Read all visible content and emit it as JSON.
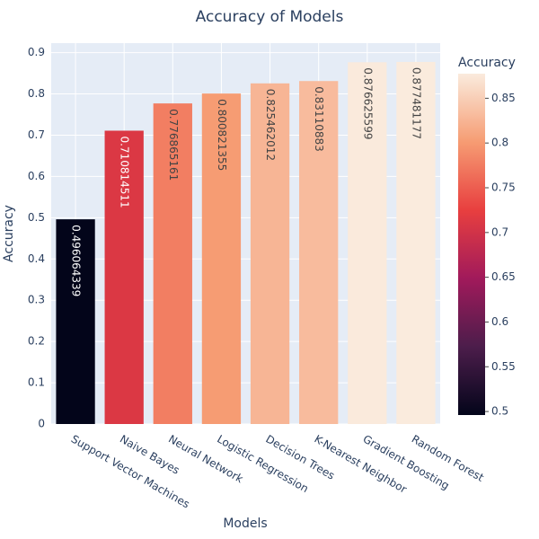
{
  "chart_data": {
    "type": "bar",
    "title": "Accuracy of Models",
    "x_label": "Models",
    "y_label": "Accuracy",
    "categories": [
      "Support Vector Machines",
      "Naive Bayes",
      "Neural Network",
      "Logistic Regression",
      "Decision Trees",
      "K-Nearest Neighbor",
      "Gradient Boosting",
      "Random Forest"
    ],
    "values": [
      0.496064339,
      0.710814511,
      0.776865161,
      0.800821355,
      0.825462012,
      0.83110883,
      0.876625599,
      0.877481177
    ],
    "ylim": [
      0,
      0.923
    ],
    "yticks": [
      0,
      0.1,
      0.2,
      0.3,
      0.4,
      0.5,
      0.6,
      0.7,
      0.8,
      0.9
    ],
    "grid": true,
    "colorscale": [
      "#03051a",
      "#4c1d4b",
      "#a11a5b",
      "#e83f3f",
      "#f69c73",
      "#faebdd"
    ],
    "colorbar_title": "Accuracy",
    "colorbar_ticks": [
      0.5,
      0.55,
      0.6,
      0.65,
      0.7,
      0.75,
      0.8,
      0.85
    ]
  }
}
